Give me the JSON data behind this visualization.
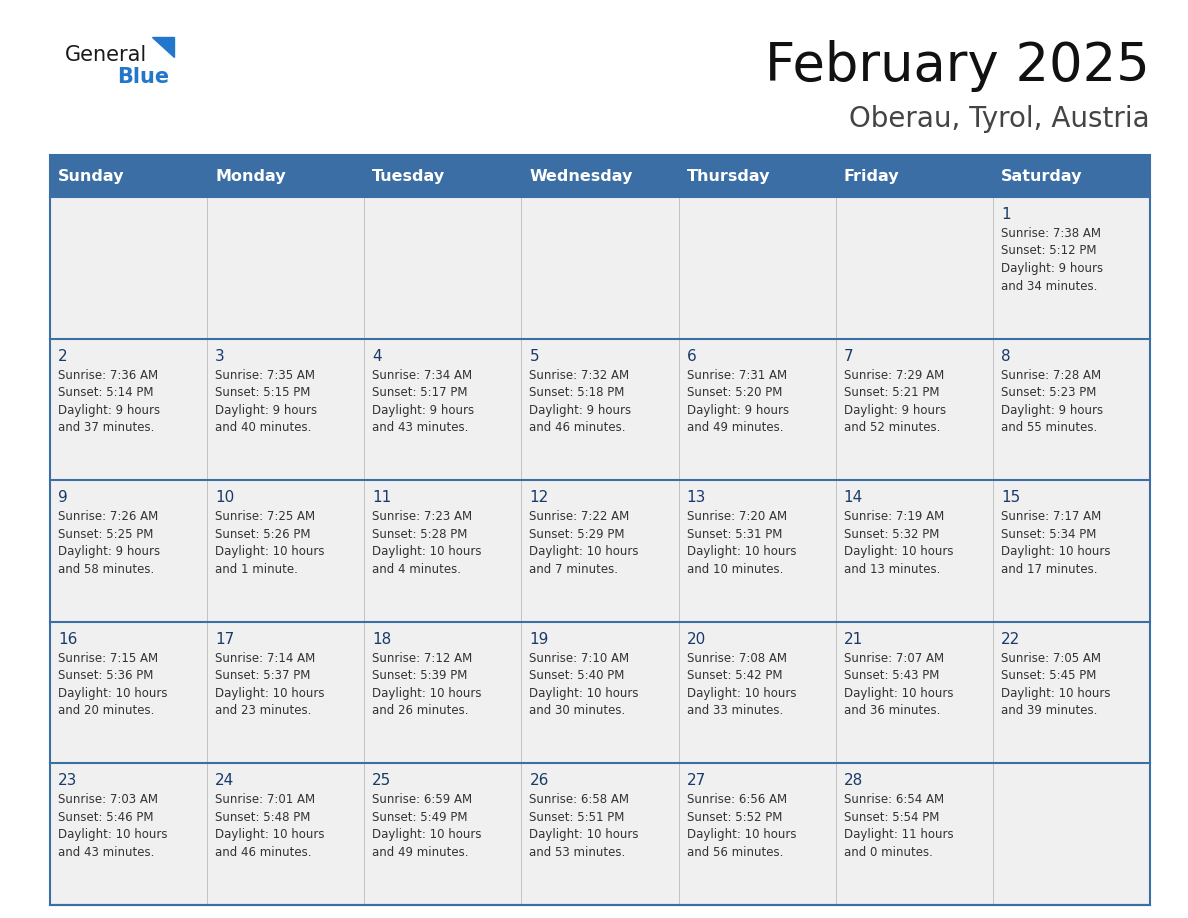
{
  "title": "February 2025",
  "subtitle": "Oberau, Tyrol, Austria",
  "days_of_week": [
    "Sunday",
    "Monday",
    "Tuesday",
    "Wednesday",
    "Thursday",
    "Friday",
    "Saturday"
  ],
  "header_bg": "#3a6ea5",
  "header_fg": "#ffffff",
  "row_bg": "#f0f0f0",
  "border_color": "#3a6ea5",
  "text_color": "#333333",
  "day_number_color": "#1a3a6a",
  "logo_general_color": "#1a1a1a",
  "logo_blue_color": "#2277cc",
  "logo_triangle_color": "#2277cc",
  "calendar_data": [
    [
      null,
      null,
      null,
      null,
      null,
      null,
      {
        "day": "1",
        "sunrise": "7:38 AM",
        "sunset": "5:12 PM",
        "daylight": "9 hours\nand 34 minutes."
      }
    ],
    [
      {
        "day": "2",
        "sunrise": "7:36 AM",
        "sunset": "5:14 PM",
        "daylight": "9 hours\nand 37 minutes."
      },
      {
        "day": "3",
        "sunrise": "7:35 AM",
        "sunset": "5:15 PM",
        "daylight": "9 hours\nand 40 minutes."
      },
      {
        "day": "4",
        "sunrise": "7:34 AM",
        "sunset": "5:17 PM",
        "daylight": "9 hours\nand 43 minutes."
      },
      {
        "day": "5",
        "sunrise": "7:32 AM",
        "sunset": "5:18 PM",
        "daylight": "9 hours\nand 46 minutes."
      },
      {
        "day": "6",
        "sunrise": "7:31 AM",
        "sunset": "5:20 PM",
        "daylight": "9 hours\nand 49 minutes."
      },
      {
        "day": "7",
        "sunrise": "7:29 AM",
        "sunset": "5:21 PM",
        "daylight": "9 hours\nand 52 minutes."
      },
      {
        "day": "8",
        "sunrise": "7:28 AM",
        "sunset": "5:23 PM",
        "daylight": "9 hours\nand 55 minutes."
      }
    ],
    [
      {
        "day": "9",
        "sunrise": "7:26 AM",
        "sunset": "5:25 PM",
        "daylight": "9 hours\nand 58 minutes."
      },
      {
        "day": "10",
        "sunrise": "7:25 AM",
        "sunset": "5:26 PM",
        "daylight": "10 hours\nand 1 minute."
      },
      {
        "day": "11",
        "sunrise": "7:23 AM",
        "sunset": "5:28 PM",
        "daylight": "10 hours\nand 4 minutes."
      },
      {
        "day": "12",
        "sunrise": "7:22 AM",
        "sunset": "5:29 PM",
        "daylight": "10 hours\nand 7 minutes."
      },
      {
        "day": "13",
        "sunrise": "7:20 AM",
        "sunset": "5:31 PM",
        "daylight": "10 hours\nand 10 minutes."
      },
      {
        "day": "14",
        "sunrise": "7:19 AM",
        "sunset": "5:32 PM",
        "daylight": "10 hours\nand 13 minutes."
      },
      {
        "day": "15",
        "sunrise": "7:17 AM",
        "sunset": "5:34 PM",
        "daylight": "10 hours\nand 17 minutes."
      }
    ],
    [
      {
        "day": "16",
        "sunrise": "7:15 AM",
        "sunset": "5:36 PM",
        "daylight": "10 hours\nand 20 minutes."
      },
      {
        "day": "17",
        "sunrise": "7:14 AM",
        "sunset": "5:37 PM",
        "daylight": "10 hours\nand 23 minutes."
      },
      {
        "day": "18",
        "sunrise": "7:12 AM",
        "sunset": "5:39 PM",
        "daylight": "10 hours\nand 26 minutes."
      },
      {
        "day": "19",
        "sunrise": "7:10 AM",
        "sunset": "5:40 PM",
        "daylight": "10 hours\nand 30 minutes."
      },
      {
        "day": "20",
        "sunrise": "7:08 AM",
        "sunset": "5:42 PM",
        "daylight": "10 hours\nand 33 minutes."
      },
      {
        "day": "21",
        "sunrise": "7:07 AM",
        "sunset": "5:43 PM",
        "daylight": "10 hours\nand 36 minutes."
      },
      {
        "day": "22",
        "sunrise": "7:05 AM",
        "sunset": "5:45 PM",
        "daylight": "10 hours\nand 39 minutes."
      }
    ],
    [
      {
        "day": "23",
        "sunrise": "7:03 AM",
        "sunset": "5:46 PM",
        "daylight": "10 hours\nand 43 minutes."
      },
      {
        "day": "24",
        "sunrise": "7:01 AM",
        "sunset": "5:48 PM",
        "daylight": "10 hours\nand 46 minutes."
      },
      {
        "day": "25",
        "sunrise": "6:59 AM",
        "sunset": "5:49 PM",
        "daylight": "10 hours\nand 49 minutes."
      },
      {
        "day": "26",
        "sunrise": "6:58 AM",
        "sunset": "5:51 PM",
        "daylight": "10 hours\nand 53 minutes."
      },
      {
        "day": "27",
        "sunrise": "6:56 AM",
        "sunset": "5:52 PM",
        "daylight": "10 hours\nand 56 minutes."
      },
      {
        "day": "28",
        "sunrise": "6:54 AM",
        "sunset": "5:54 PM",
        "daylight": "11 hours\nand 0 minutes."
      },
      null
    ]
  ],
  "figsize": [
    11.88,
    9.18
  ],
  "dpi": 100
}
